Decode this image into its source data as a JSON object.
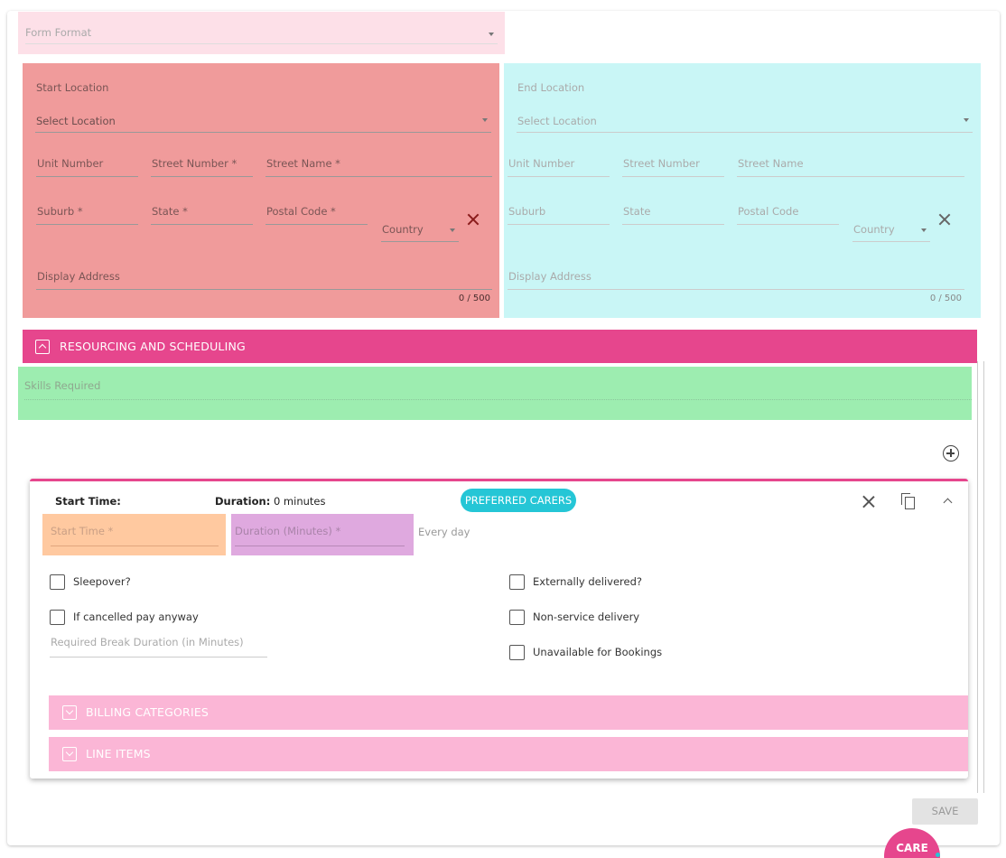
{
  "form_format": {
    "label": "Form Format"
  },
  "start_location": {
    "title": "Start Location",
    "select_location": "Select Location",
    "unit_number": "Unit Number",
    "street_number": "Street Number *",
    "street_name": "Street Name *",
    "suburb": "Suburb *",
    "state": "State *",
    "postal_code": "Postal Code *",
    "country": "Country",
    "display_address": "Display Address",
    "counter": "0 / 500"
  },
  "end_location": {
    "title": "End Location",
    "select_location": "Select Location",
    "unit_number": "Unit Number",
    "street_number": "Street Number",
    "street_name": "Street Name",
    "suburb": "Suburb",
    "state": "State",
    "postal_code": "Postal Code",
    "country": "Country",
    "display_address": "Display Address",
    "counter": "0 / 500"
  },
  "resourcing": {
    "title": "RESOURCING AND SCHEDULING"
  },
  "skills": {
    "label": "Skills Required"
  },
  "shift": {
    "start_time_label": "Start Time:",
    "duration_label": "Duration:",
    "duration_value": "0 minutes",
    "preferred_carers": "PREFERRED CARERS",
    "start_time_field": "Start Time *",
    "duration_field": "Duration (Minutes) *",
    "recurrence": "Every day",
    "sleepover": "Sleepover?",
    "cancelled_pay": "If cancelled pay anyway",
    "break_duration": "Required Break Duration (in Minutes)",
    "externally_delivered": "Externally delivered?",
    "non_service_delivery": "Non-service delivery",
    "unavailable_bookings": "Unavailable for Bookings",
    "billing_categories": "BILLING CATEGORIES",
    "line_items": "LINE ITEMS"
  },
  "save": {
    "label": "SAVE"
  },
  "logo": {
    "text": "CARE"
  },
  "colors": {
    "accent_pink": "#e6468d",
    "accent_cyan": "#25c6d6"
  }
}
